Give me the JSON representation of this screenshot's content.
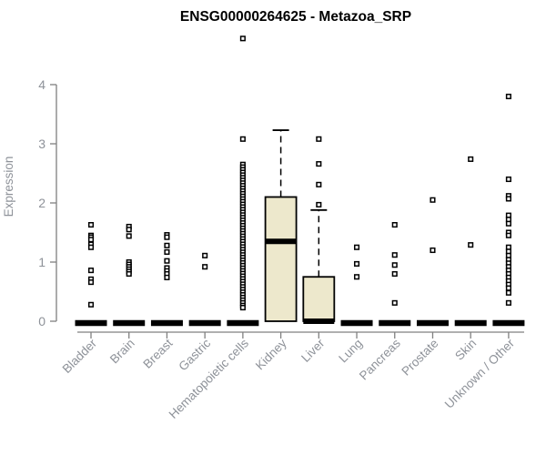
{
  "title": "ENSG00000264625 - Metazoa_SRP",
  "colors": {
    "box_fill": "#EDE8CC",
    "data_stroke": "#000000",
    "axis": "#808080",
    "tick_label": "#8E9299",
    "title": "#000000"
  },
  "chart_data": {
    "type": "boxplot",
    "title": "ENSG00000264625 - Metazoa_SRP",
    "xlabel": "",
    "ylabel": "Expression",
    "ylim": [
      0,
      4
    ],
    "yticks": [
      0,
      1,
      2,
      3,
      4
    ],
    "grid": false,
    "legend": null,
    "categories": [
      "Bladder",
      "Brain",
      "Breast",
      "Gastric",
      "Hematopoietic cells",
      "Kidney",
      "Liver",
      "Lung",
      "Pancreas",
      "Prostate",
      "Skin",
      "Unknown / Other"
    ],
    "groups": [
      {
        "label": "Bladder",
        "box": {
          "low": 0,
          "q1": 0,
          "median": 0,
          "q3": 0,
          "high": 0
        },
        "outliers": [
          1.63,
          1.45,
          1.42,
          1.38,
          1.3,
          1.25,
          0.86,
          0.71,
          0.66,
          0.28
        ]
      },
      {
        "label": "Brain",
        "box": {
          "low": 0,
          "q1": 0,
          "median": 0,
          "q3": 0,
          "high": 0
        },
        "outliers": [
          1.6,
          1.55,
          1.44,
          1.0,
          0.96,
          0.92,
          0.88,
          0.84,
          0.8
        ]
      },
      {
        "label": "Breast",
        "box": {
          "low": 0,
          "q1": 0,
          "median": 0,
          "q3": 0,
          "high": 0
        },
        "outliers": [
          1.46,
          1.42,
          1.28,
          1.17,
          1.02,
          0.9,
          0.85,
          0.8,
          0.74
        ]
      },
      {
        "label": "Gastric",
        "box": {
          "low": 0,
          "q1": 0,
          "median": 0,
          "q3": 0,
          "high": 0
        },
        "outliers": [
          1.11,
          0.92
        ]
      },
      {
        "label": "Hematopoietic cells",
        "box": {
          "low": 0,
          "q1": 0,
          "median": 0,
          "q3": 0,
          "high": 0
        },
        "outliers": [
          4.78,
          3.08,
          2.65,
          2.605,
          2.56,
          2.515,
          2.47,
          2.425,
          2.38,
          2.335,
          2.29,
          2.245,
          2.2,
          2.155,
          2.11,
          2.065,
          2.02,
          1.975,
          1.93,
          1.885,
          1.84,
          1.795,
          1.75,
          1.705,
          1.66,
          1.615,
          1.57,
          1.525,
          1.48,
          1.435,
          1.39,
          1.345,
          1.3,
          1.255,
          1.21,
          1.165,
          1.12,
          1.075,
          1.03,
          0.985,
          0.94,
          0.895,
          0.85,
          0.805,
          0.76,
          0.715,
          0.67,
          0.625,
          0.58,
          0.535,
          0.49,
          0.445,
          0.4,
          0.355,
          0.31,
          0.265,
          0.23
        ]
      },
      {
        "label": "Kidney",
        "box": {
          "low": 0,
          "q1": 0,
          "median": 1.35,
          "q3": 2.1,
          "high": 3.23
        },
        "outliers": []
      },
      {
        "label": "Liver",
        "box": {
          "low": 0,
          "q1": 0,
          "median": 0,
          "q3": 0.75,
          "high": 1.88
        },
        "outliers": [
          3.08,
          2.66,
          2.31,
          1.97
        ]
      },
      {
        "label": "Lung",
        "box": {
          "low": 0,
          "q1": 0,
          "median": 0,
          "q3": 0,
          "high": 0
        },
        "outliers": [
          1.25,
          0.97,
          0.75
        ]
      },
      {
        "label": "Pancreas",
        "box": {
          "low": 0,
          "q1": 0,
          "median": 0,
          "q3": 0,
          "high": 0
        },
        "outliers": [
          1.63,
          1.12,
          0.95,
          0.8,
          0.31
        ]
      },
      {
        "label": "Prostate",
        "box": {
          "low": 0,
          "q1": 0,
          "median": 0,
          "q3": 0,
          "high": 0
        },
        "outliers": [
          2.05,
          1.2
        ]
      },
      {
        "label": "Skin",
        "box": {
          "low": 0,
          "q1": 0,
          "median": 0,
          "q3": 0,
          "high": 0
        },
        "outliers": [
          2.74,
          1.29
        ]
      },
      {
        "label": "Unknown / Other",
        "box": {
          "low": 0,
          "q1": 0,
          "median": 0,
          "q3": 0,
          "high": 0
        },
        "outliers": [
          3.8,
          2.4,
          2.12,
          2.07,
          1.79,
          1.72,
          1.65,
          1.5,
          1.45,
          1.25,
          1.18,
          1.11,
          1.04,
          0.98,
          0.92,
          0.86,
          0.8,
          0.74,
          0.68,
          0.62,
          0.56,
          0.48,
          0.31
        ]
      }
    ]
  }
}
